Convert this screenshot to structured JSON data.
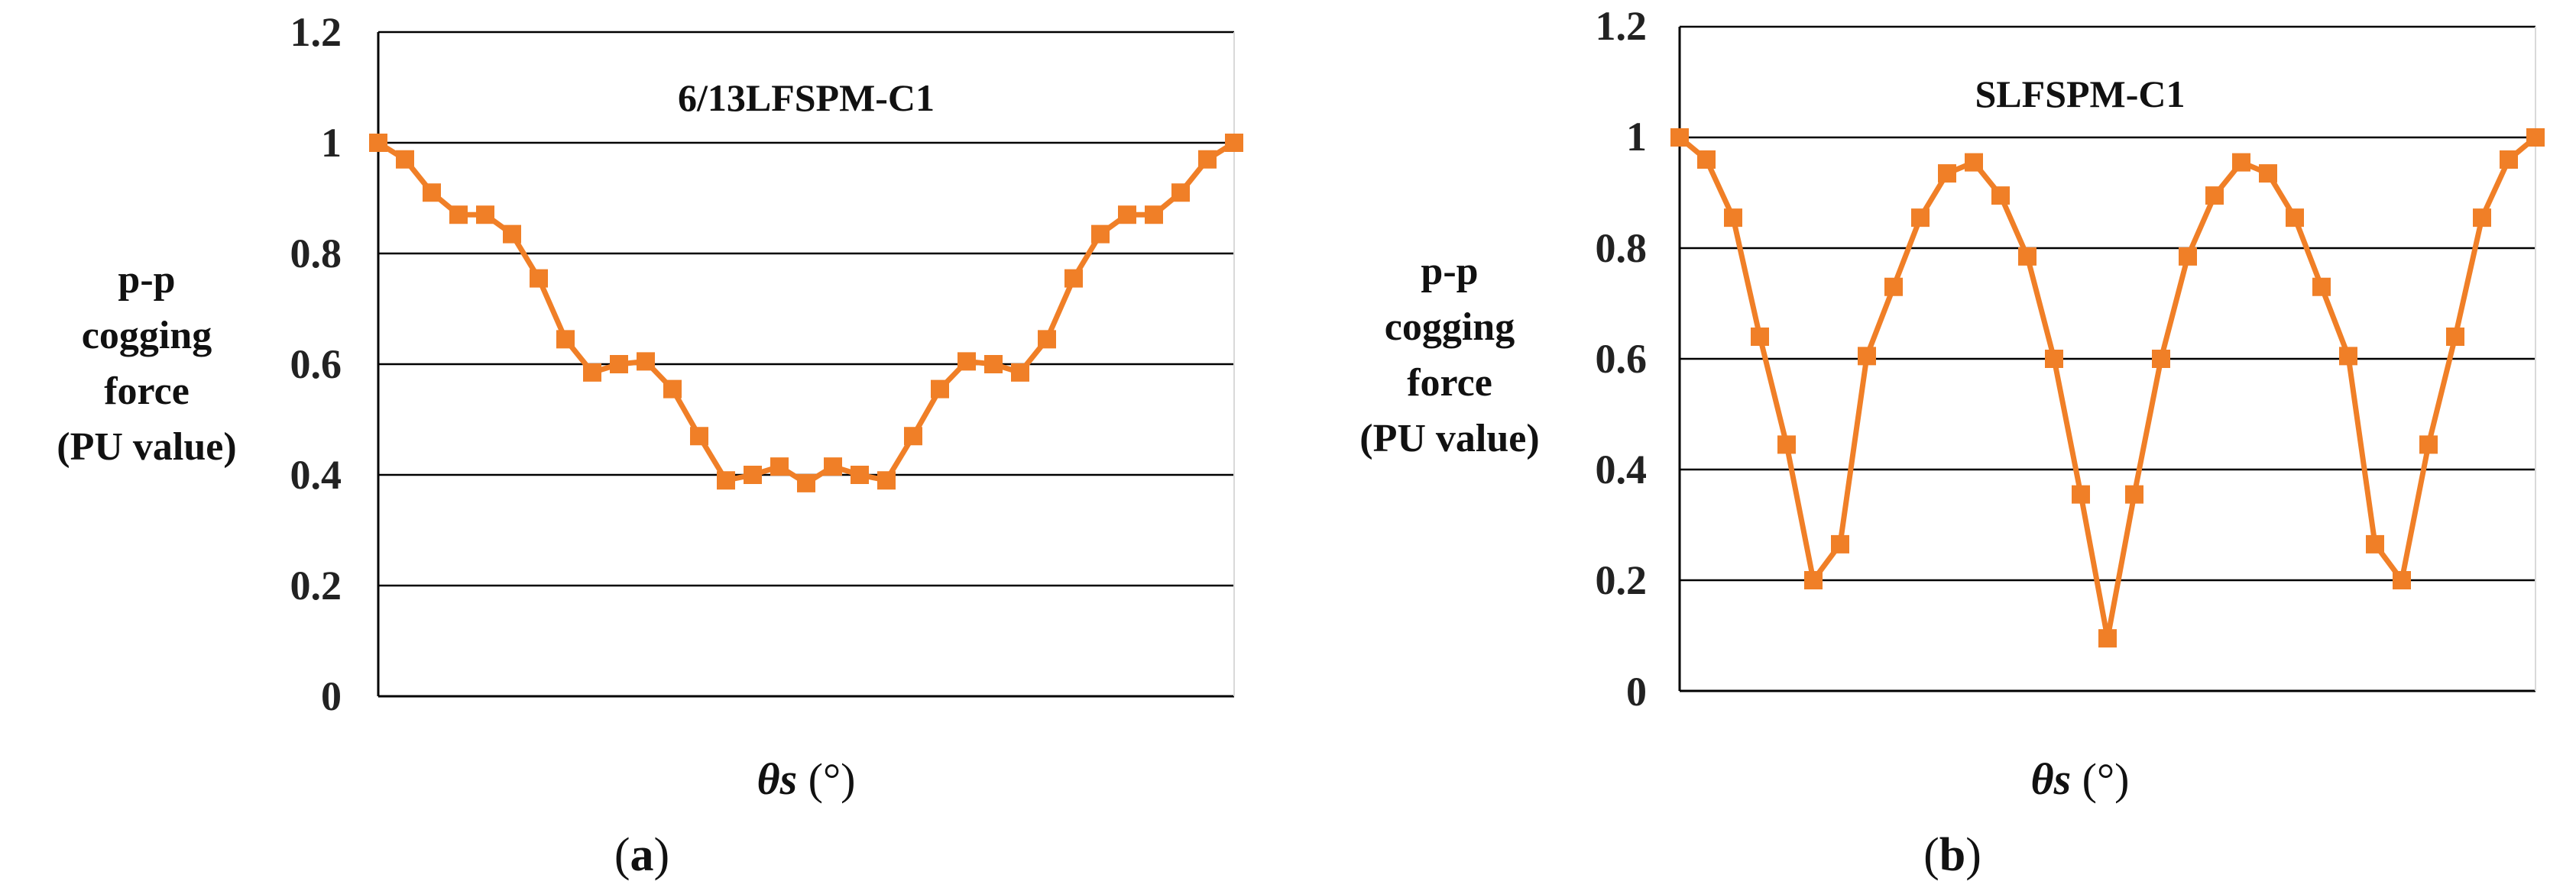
{
  "colors": {
    "series": "#F07F27",
    "grid": "#000000",
    "text": "#111111"
  },
  "chart_data": [
    {
      "type": "line",
      "panel_label": "a",
      "title": "6/13LFSPM-C1",
      "ylabel_lines": [
        "p-p",
        "cogging",
        "force",
        "(PU value)"
      ],
      "xlabel_symbol": "θs",
      "xlabel_unit": "(°)",
      "ylim": [
        0,
        1.2
      ],
      "yticks": [
        "1.2",
        "1",
        "0.8",
        "0.6",
        "0.4",
        "0.2",
        "0"
      ],
      "grid": true,
      "series": [
        {
          "name": "6/13LFSPM-C1",
          "marker": "square",
          "values": [
            1.0,
            0.97,
            0.91,
            0.87,
            0.87,
            0.835,
            0.755,
            0.645,
            0.585,
            0.6,
            0.605,
            0.555,
            0.47,
            0.39,
            0.4,
            0.415,
            0.385,
            0.415,
            0.4,
            0.39,
            0.47,
            0.555,
            0.605,
            0.6,
            0.585,
            0.645,
            0.755,
            0.835,
            0.87,
            0.87,
            0.91,
            0.97,
            1.0
          ]
        }
      ]
    },
    {
      "type": "line",
      "panel_label": "b",
      "title": "SLFSPM-C1",
      "ylabel_lines": [
        "p-p",
        "cogging",
        "force",
        "(PU value)"
      ],
      "xlabel_symbol": "θs",
      "xlabel_unit": "(°)",
      "ylim": [
        0,
        1.2
      ],
      "yticks": [
        "1.2",
        "1",
        "0.8",
        "0.6",
        "0.4",
        "0.2",
        "0"
      ],
      "grid": true,
      "series": [
        {
          "name": "SLFSPM-C1",
          "marker": "square",
          "values": [
            1.0,
            0.96,
            0.855,
            0.64,
            0.445,
            0.2,
            0.265,
            0.605,
            0.73,
            0.855,
            0.935,
            0.955,
            0.895,
            0.785,
            0.6,
            0.355,
            0.095,
            0.355,
            0.6,
            0.785,
            0.895,
            0.955,
            0.935,
            0.855,
            0.73,
            0.605,
            0.265,
            0.2,
            0.445,
            0.64,
            0.855,
            0.96,
            1.0
          ]
        }
      ]
    }
  ]
}
